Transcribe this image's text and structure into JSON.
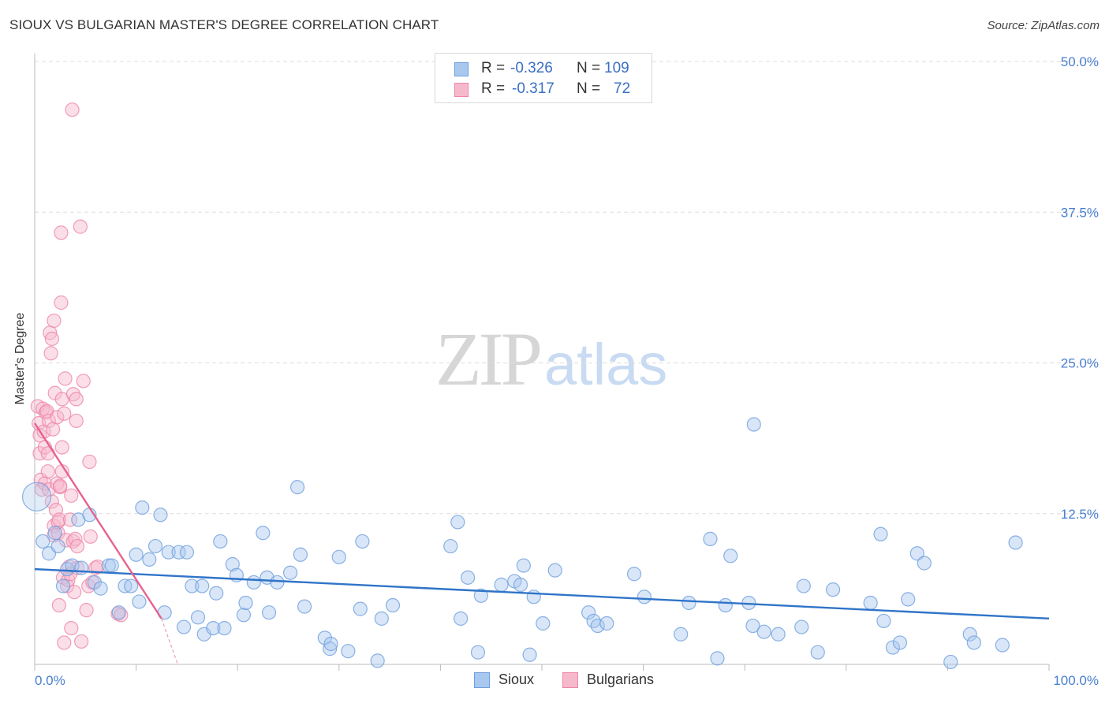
{
  "title": "SIOUX VS BULGARIAN MASTER'S DEGREE CORRELATION CHART",
  "source": "Source: ZipAtlas.com",
  "watermark": {
    "part1": "ZIP",
    "part2": "atlas"
  },
  "legend_top": {
    "rows": [
      {
        "r_label": "R = ",
        "r_value": "-0.326",
        "n_label": "N = ",
        "n_value": "109"
      },
      {
        "r_label": "R = ",
        "r_value": "-0.317",
        "n_label": "N = ",
        "n_value": "72"
      }
    ]
  },
  "legend_bottom": [
    {
      "label": "Sioux"
    },
    {
      "label": "Bulgarians"
    }
  ],
  "colors": {
    "sioux_fill": "#a9c8ef",
    "sioux_stroke": "#6f9fdc",
    "sioux_line": "#2f74c8",
    "bulg_fill": "#f6b9cc",
    "bulg_stroke": "#ee86a7",
    "bulg_line": "#e8628e",
    "tick": "#4a7fd0",
    "grid": "#dddddd"
  },
  "chart_data": {
    "type": "scatter",
    "title": "SIOUX VS BULGARIAN MASTER'S DEGREE CORRELATION CHART",
    "xlabel": "",
    "ylabel": "Master's Degree",
    "xlim": [
      0,
      100
    ],
    "ylim": [
      0,
      50
    ],
    "x_tick_labels": [
      {
        "value": 0,
        "label": "0.0%"
      },
      {
        "value": 100,
        "label": "100.0%"
      }
    ],
    "y_tick_labels": [
      {
        "value": 12.5,
        "label": "12.5%"
      },
      {
        "value": 25,
        "label": "25.0%"
      },
      {
        "value": 37.5,
        "label": "37.5%"
      },
      {
        "value": 50,
        "label": "50.0%"
      }
    ],
    "grid": true,
    "legend_position": "bottom",
    "series": [
      {
        "name": "Sioux",
        "r": -0.326,
        "n": 109,
        "trend": {
          "x": [
            0,
            100
          ],
          "y": [
            7.9,
            3.8
          ]
        },
        "points": [
          [
            0.2,
            13.9
          ],
          [
            0.8,
            10.2
          ],
          [
            1.4,
            9.2
          ],
          [
            2.0,
            10.9
          ],
          [
            2.3,
            9.8
          ],
          [
            2.8,
            6.5
          ],
          [
            3.2,
            7.9
          ],
          [
            3.7,
            8.2
          ],
          [
            4.3,
            12.0
          ],
          [
            4.6,
            8.0
          ],
          [
            5.4,
            12.4
          ],
          [
            5.9,
            6.8
          ],
          [
            6.5,
            6.3
          ],
          [
            7.3,
            8.2
          ],
          [
            7.6,
            8.2
          ],
          [
            8.3,
            4.3
          ],
          [
            8.9,
            6.5
          ],
          [
            9.5,
            6.5
          ],
          [
            10.0,
            9.1
          ],
          [
            10.3,
            5.2
          ],
          [
            10.6,
            13.0
          ],
          [
            11.3,
            8.7
          ],
          [
            11.9,
            9.8
          ],
          [
            12.4,
            12.4
          ],
          [
            12.8,
            4.3
          ],
          [
            13.2,
            9.3
          ],
          [
            14.2,
            9.3
          ],
          [
            14.7,
            3.1
          ],
          [
            15.0,
            9.3
          ],
          [
            15.5,
            6.5
          ],
          [
            16.1,
            3.9
          ],
          [
            16.5,
            6.5
          ],
          [
            16.7,
            2.5
          ],
          [
            17.6,
            3.0
          ],
          [
            17.9,
            5.9
          ],
          [
            18.3,
            10.2
          ],
          [
            18.7,
            3.0
          ],
          [
            19.5,
            8.3
          ],
          [
            19.9,
            7.4
          ],
          [
            20.6,
            4.1
          ],
          [
            20.8,
            5.1
          ],
          [
            21.6,
            6.8
          ],
          [
            22.5,
            10.9
          ],
          [
            22.9,
            7.2
          ],
          [
            23.1,
            4.3
          ],
          [
            23.9,
            6.8
          ],
          [
            25.2,
            7.6
          ],
          [
            25.9,
            14.7
          ],
          [
            26.2,
            9.1
          ],
          [
            26.6,
            4.8
          ],
          [
            28.6,
            2.2
          ],
          [
            29.1,
            1.3
          ],
          [
            29.2,
            1.7
          ],
          [
            30.0,
            8.9
          ],
          [
            30.9,
            1.1
          ],
          [
            32.1,
            4.6
          ],
          [
            32.3,
            10.2
          ],
          [
            33.8,
            0.3
          ],
          [
            34.2,
            3.8
          ],
          [
            35.3,
            4.9
          ],
          [
            41.0,
            9.8
          ],
          [
            42.0,
            3.8
          ],
          [
            41.7,
            11.8
          ],
          [
            42.7,
            7.2
          ],
          [
            43.7,
            1.0
          ],
          [
            44.0,
            5.7
          ],
          [
            46.0,
            6.6
          ],
          [
            47.3,
            6.9
          ],
          [
            47.9,
            6.6
          ],
          [
            48.2,
            8.2
          ],
          [
            48.8,
            0.8
          ],
          [
            49.2,
            5.6
          ],
          [
            50.1,
            3.4
          ],
          [
            51.3,
            7.8
          ],
          [
            54.6,
            4.3
          ],
          [
            55.1,
            3.6
          ],
          [
            55.5,
            3.2
          ],
          [
            56.4,
            3.4
          ],
          [
            59.1,
            7.5
          ],
          [
            60.1,
            5.6
          ],
          [
            63.7,
            2.5
          ],
          [
            64.5,
            5.1
          ],
          [
            66.6,
            10.4
          ],
          [
            67.3,
            0.5
          ],
          [
            68.1,
            4.9
          ],
          [
            68.6,
            9.0
          ],
          [
            70.4,
            5.1
          ],
          [
            70.8,
            3.2
          ],
          [
            70.9,
            19.9
          ],
          [
            71.9,
            2.7
          ],
          [
            73.3,
            2.5
          ],
          [
            75.6,
            3.1
          ],
          [
            75.8,
            6.5
          ],
          [
            77.2,
            1.0
          ],
          [
            78.7,
            6.2
          ],
          [
            82.4,
            5.1
          ],
          [
            83.4,
            10.8
          ],
          [
            83.7,
            3.6
          ],
          [
            84.6,
            1.4
          ],
          [
            85.3,
            1.8
          ],
          [
            86.1,
            5.4
          ],
          [
            87.0,
            9.2
          ],
          [
            87.7,
            8.4
          ],
          [
            90.3,
            0.2
          ],
          [
            92.2,
            2.5
          ],
          [
            92.6,
            1.8
          ],
          [
            95.4,
            1.6
          ],
          [
            96.7,
            10.1
          ]
        ]
      },
      {
        "name": "Bulgarians",
        "r": -0.317,
        "n": 72,
        "trend": {
          "x": [
            0,
            12.5
          ],
          "y": [
            20.0,
            3.8
          ]
        },
        "trend_dashed_extension": {
          "x": [
            12.5,
            14.1
          ],
          "y": [
            3.8,
            0.0
          ]
        },
        "points": [
          [
            0.3,
            21.4
          ],
          [
            0.4,
            20.0
          ],
          [
            0.5,
            19.0
          ],
          [
            0.5,
            17.5
          ],
          [
            0.6,
            15.3
          ],
          [
            0.7,
            14.5
          ],
          [
            0.8,
            21.2
          ],
          [
            0.9,
            19.3
          ],
          [
            1.0,
            18.0
          ],
          [
            1.0,
            15.0
          ],
          [
            1.1,
            20.9
          ],
          [
            1.2,
            21.0
          ],
          [
            1.3,
            16.0
          ],
          [
            1.3,
            17.5
          ],
          [
            1.4,
            20.2
          ],
          [
            1.4,
            14.5
          ],
          [
            1.5,
            27.5
          ],
          [
            1.6,
            25.8
          ],
          [
            1.7,
            13.5
          ],
          [
            1.7,
            27.0
          ],
          [
            1.8,
            19.5
          ],
          [
            1.9,
            11.5
          ],
          [
            1.9,
            10.7
          ],
          [
            1.9,
            28.5
          ],
          [
            2.0,
            22.5
          ],
          [
            2.1,
            12.8
          ],
          [
            2.2,
            20.5
          ],
          [
            2.2,
            15.0
          ],
          [
            2.3,
            10.9
          ],
          [
            2.3,
            11.8
          ],
          [
            2.4,
            12.0
          ],
          [
            2.4,
            4.9
          ],
          [
            2.5,
            14.7
          ],
          [
            2.5,
            14.8
          ],
          [
            2.6,
            30.0
          ],
          [
            2.6,
            35.8
          ],
          [
            2.7,
            22.0
          ],
          [
            2.7,
            16.0
          ],
          [
            2.7,
            18.0
          ],
          [
            2.8,
            7.2
          ],
          [
            2.9,
            1.8
          ],
          [
            2.9,
            20.8
          ],
          [
            3.0,
            23.7
          ],
          [
            3.1,
            10.3
          ],
          [
            3.2,
            6.5
          ],
          [
            3.3,
            7.0
          ],
          [
            3.4,
            8.1
          ],
          [
            3.5,
            7.5
          ],
          [
            3.5,
            12.0
          ],
          [
            3.6,
            3.0
          ],
          [
            3.6,
            14.0
          ],
          [
            3.7,
            46.0
          ],
          [
            3.8,
            22.4
          ],
          [
            3.8,
            10.2
          ],
          [
            3.9,
            6.0
          ],
          [
            4.0,
            10.4
          ],
          [
            4.1,
            20.2
          ],
          [
            4.1,
            22.0
          ],
          [
            4.2,
            9.8
          ],
          [
            4.2,
            8.0
          ],
          [
            4.5,
            36.3
          ],
          [
            4.6,
            1.9
          ],
          [
            4.8,
            23.5
          ],
          [
            5.1,
            4.5
          ],
          [
            5.3,
            6.5
          ],
          [
            5.4,
            16.8
          ],
          [
            5.5,
            10.6
          ],
          [
            5.7,
            6.8
          ],
          [
            6.0,
            8.0
          ],
          [
            6.2,
            8.1
          ],
          [
            8.2,
            4.2
          ],
          [
            8.5,
            4.1
          ]
        ]
      }
    ]
  }
}
